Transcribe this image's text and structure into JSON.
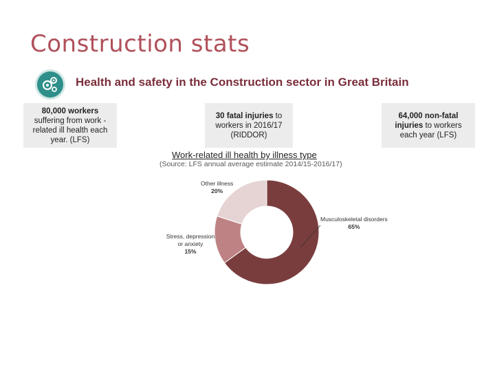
{
  "slide": {
    "title": "Construction stats"
  },
  "banner": {
    "title": "Health and safety in the Construction sector in Great Britain",
    "logo_icon": "gears-icon"
  },
  "stats": [
    {
      "text": "80,000 workers suffering from work - related ill health each year. (LFS)",
      "bold_part": "80,000 workers"
    },
    {
      "text": "30 fatal injuries to workers in 2016/17 (RIDDOR)",
      "bold_part": "30 fatal injuries"
    },
    {
      "text": "64,000 non-fatal injuries to workers each year (LFS)",
      "bold_part": "64,000 non-fatal injuries"
    }
  ],
  "chart_data": {
    "type": "pie",
    "title": "Work-related ill health by illness type",
    "subtitle": "(Source: LFS annual average estimate 2014/15-2016/17)",
    "categories": [
      "Musculoskeletal disorders",
      "Stress, depression or anxiety",
      "Other illness"
    ],
    "values": [
      65,
      15,
      20
    ],
    "value_labels": [
      "65%",
      "15%",
      "20%"
    ],
    "colors": [
      "#7a3d3e",
      "#bf8284",
      "#e6d3d3"
    ],
    "donut": true
  }
}
